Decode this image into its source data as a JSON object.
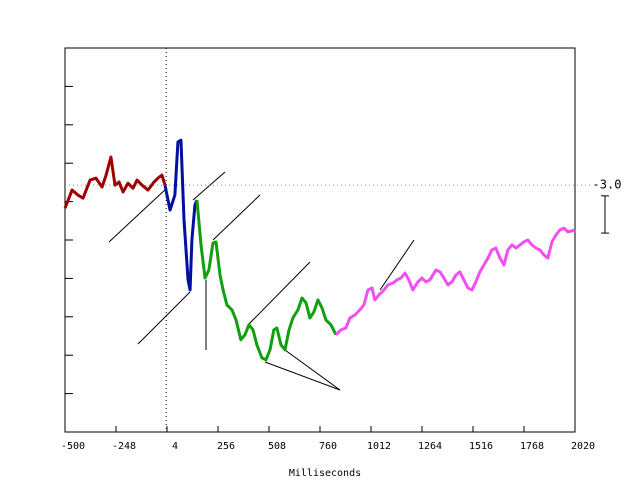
{
  "chart_data": {
    "type": "line",
    "x_label": "Milliseconds",
    "xlim": [
      -500,
      2020
    ],
    "xticks": [
      -500,
      -248,
      4,
      256,
      508,
      760,
      1012,
      1264,
      1516,
      1768,
      2020
    ],
    "ylim": [
      0,
      10
    ],
    "yticks": [
      1,
      2,
      3,
      4,
      5,
      6,
      7,
      8,
      9
    ],
    "vline": 0,
    "hline": 6.43,
    "scale_bar": {
      "label": "-3.0",
      "from": 6.15,
      "to": 5.18
    },
    "series": [
      {
        "color": "#a00000",
        "x": [
          -500,
          -465,
          -436,
          -411,
          -376,
          -347,
          -317,
          -297,
          -273,
          -253,
          -233,
          -213,
          -189,
          -164,
          -144,
          -120,
          -90,
          -60,
          -41,
          -21,
          -6
        ],
        "values": [
          5.83,
          6.3,
          6.17,
          6.09,
          6.56,
          6.61,
          6.38,
          6.69,
          7.16,
          6.43,
          6.51,
          6.25,
          6.48,
          6.35,
          6.56,
          6.43,
          6.3,
          6.51,
          6.61,
          6.69,
          6.43
        ]
      },
      {
        "color": "#0010a0",
        "x": [
          -6,
          19,
          43,
          58,
          73,
          88,
          108,
          118,
          127,
          142,
          152
        ],
        "values": [
          6.43,
          5.78,
          6.17,
          7.55,
          7.6,
          5.52,
          3.96,
          3.7,
          5.0,
          5.91,
          6.04
        ]
      },
      {
        "color": "#10a010",
        "x": [
          152,
          172,
          192,
          211,
          231,
          246,
          266,
          281,
          300,
          325,
          345,
          369,
          389,
          409,
          429,
          448,
          473,
          493,
          513,
          532,
          547,
          567,
          587,
          607,
          626,
          651,
          671,
          691,
          710,
          730,
          750,
          770,
          789,
          814,
          839
        ],
        "values": [
          6.04,
          4.87,
          4.01,
          4.22,
          4.92,
          4.95,
          4.09,
          3.7,
          3.31,
          3.18,
          2.92,
          2.4,
          2.53,
          2.79,
          2.66,
          2.27,
          1.93,
          1.88,
          2.14,
          2.66,
          2.71,
          2.27,
          2.14,
          2.66,
          2.97,
          3.18,
          3.49,
          3.36,
          2.97,
          3.13,
          3.44,
          3.23,
          2.92,
          2.79,
          2.53
        ]
      },
      {
        "color": "#f050f0",
        "x": [
          839,
          864,
          888,
          908,
          933,
          957,
          977,
          997,
          1017,
          1031,
          1051,
          1076,
          1096,
          1120,
          1140,
          1160,
          1180,
          1199,
          1219,
          1244,
          1264,
          1283,
          1303,
          1333,
          1353,
          1372,
          1392,
          1412,
          1432,
          1451,
          1471,
          1491,
          1511,
          1530,
          1550,
          1570,
          1590,
          1609,
          1629,
          1649,
          1669,
          1688,
          1708,
          1728,
          1748,
          1767,
          1787,
          1807,
          1827,
          1847,
          1866,
          1886,
          1906,
          1926,
          1945,
          1965,
          1985,
          2020
        ],
        "values": [
          2.53,
          2.66,
          2.71,
          2.97,
          3.05,
          3.18,
          3.31,
          3.7,
          3.75,
          3.44,
          3.57,
          3.7,
          3.83,
          3.88,
          3.96,
          4.01,
          4.14,
          3.96,
          3.7,
          3.91,
          4.01,
          3.91,
          3.96,
          4.22,
          4.17,
          4.01,
          3.83,
          3.91,
          4.09,
          4.17,
          3.96,
          3.75,
          3.7,
          3.91,
          4.17,
          4.35,
          4.53,
          4.74,
          4.79,
          4.53,
          4.35,
          4.74,
          4.87,
          4.79,
          4.87,
          4.95,
          5.0,
          4.87,
          4.79,
          4.74,
          4.61,
          4.53,
          4.95,
          5.13,
          5.26,
          5.31,
          5.21,
          5.26
        ]
      }
    ]
  }
}
